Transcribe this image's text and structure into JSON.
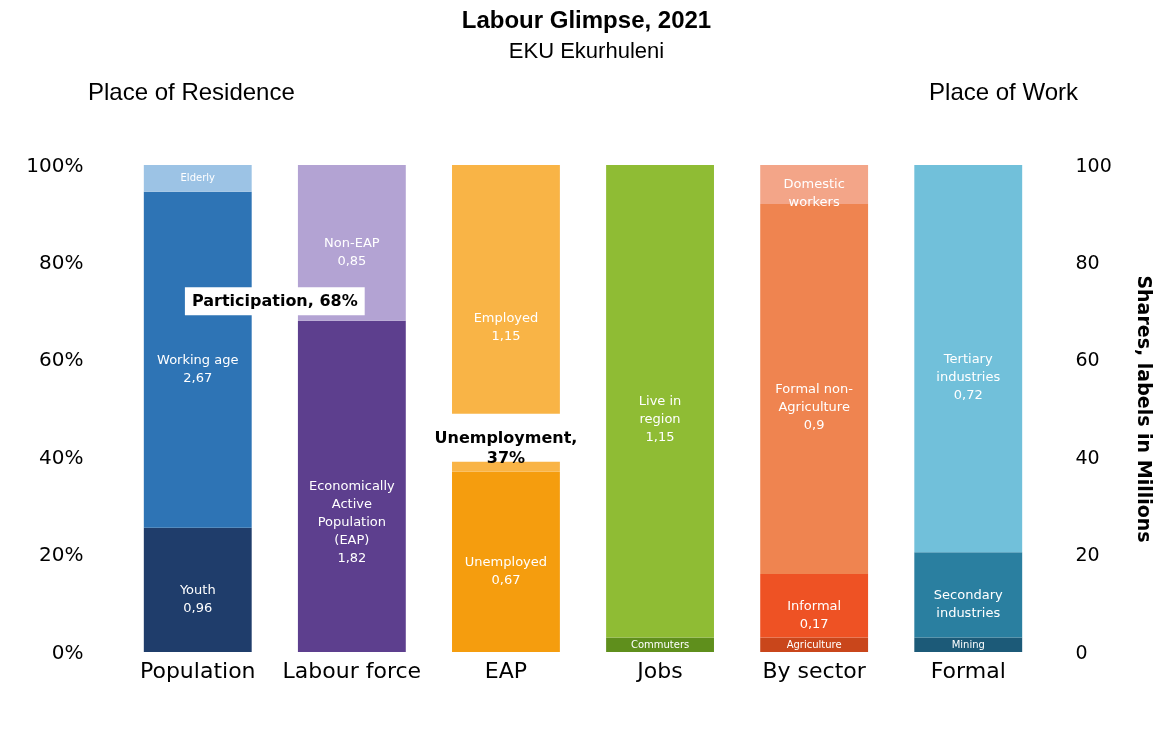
{
  "chart_data": {
    "type": "bar",
    "stacked": true,
    "title": "Labour Glimpse, 2021",
    "subtitle": "EKU Ekurhuleni",
    "y2label": "Shares, labels in Millions",
    "categories": [
      "Population",
      "Labour force",
      "EAP",
      "Jobs",
      "By sector",
      "Formal"
    ],
    "series": [
      {
        "name": "Youth 0,96",
        "color": "#1f3d6b",
        "values": [
          25.5,
          null,
          null,
          null,
          null,
          null
        ]
      },
      {
        "name": "Working age 2,67",
        "color": "#2e74b5",
        "values": [
          69,
          null,
          null,
          null,
          null,
          null
        ]
      },
      {
        "name": "Elderly",
        "color": "#9cc3e5",
        "values": [
          5.5,
          null,
          null,
          null,
          null,
          null
        ]
      },
      {
        "name": "Economically Active Population (EAP) 1,82",
        "color": "#5d3f8e",
        "values": [
          null,
          68,
          null,
          null,
          null,
          null
        ]
      },
      {
        "name": "Non-EAP 0,85",
        "color": "#b3a3d3",
        "values": [
          null,
          32,
          null,
          null,
          null,
          null
        ]
      },
      {
        "name": "Unemployed 0,67",
        "color": "#f59d0e",
        "values": [
          null,
          null,
          37,
          null,
          null,
          null
        ]
      },
      {
        "name": "Employed 1,15",
        "color": "#f9b446",
        "values": [
          null,
          null,
          63,
          null,
          null,
          null
        ]
      },
      {
        "name": "Commuters (in)",
        "color": "#5f8f1c",
        "values": [
          null,
          null,
          null,
          3,
          null,
          null
        ]
      },
      {
        "name": "Live in region 1,15",
        "color": "#8fbc34",
        "values": [
          null,
          null,
          null,
          97,
          null,
          null
        ]
      },
      {
        "name": "Agriculture",
        "color": "#c9461b",
        "values": [
          null,
          null,
          null,
          null,
          3,
          null
        ]
      },
      {
        "name": "Informal 0,17",
        "color": "#ee5224",
        "values": [
          null,
          null,
          null,
          null,
          13,
          null
        ]
      },
      {
        "name": "Formal non-Agriculture 0,9",
        "color": "#ef8450",
        "values": [
          null,
          null,
          null,
          null,
          76,
          null
        ]
      },
      {
        "name": "Domestic workers",
        "color": "#f3a588",
        "values": [
          null,
          null,
          null,
          null,
          8,
          null
        ]
      },
      {
        "name": "Mining",
        "color": "#1c5a78",
        "values": [
          null,
          null,
          null,
          null,
          null,
          3
        ]
      },
      {
        "name": "Secondary industries",
        "color": "#2a7fa0",
        "values": [
          null,
          null,
          null,
          null,
          null,
          17.5
        ]
      },
      {
        "name": "Tertiary industries 0,72",
        "color": "#71c0da",
        "values": [
          null,
          null,
          null,
          null,
          null,
          79.5
        ]
      }
    ],
    "ylim": [
      0,
      100
    ],
    "yticks": [
      {
        "value": 0,
        "label": "0%"
      },
      {
        "value": 20,
        "label": "20%"
      },
      {
        "value": 40,
        "label": "40%"
      },
      {
        "value": 60,
        "label": "60%"
      },
      {
        "value": 80,
        "label": "80%"
      },
      {
        "value": 100,
        "label": "100%"
      }
    ],
    "y2lim": [
      0,
      100
    ],
    "y2ticks": [
      0,
      20,
      40,
      60,
      80,
      100
    ],
    "annotations": [
      "Place of Residence",
      "Place of Work",
      "Participation, 68%",
      "Unemployment, 37%"
    ]
  }
}
